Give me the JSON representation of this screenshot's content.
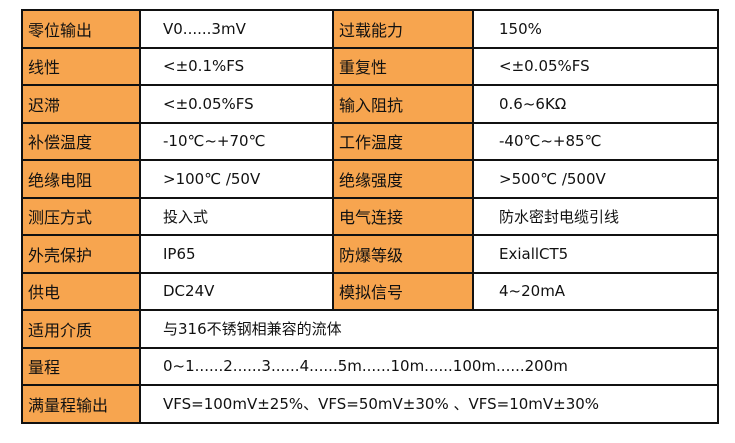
{
  "rows": [
    {
      "label1": "零位输出",
      "value1": "V0......3mV",
      "label2": "过载能力",
      "value2": "150%"
    },
    {
      "label1": "线性",
      "value1": "<±0.1%FS",
      "label2": "重复性",
      "value2": "<±0.05%FS"
    },
    {
      "label1": "迟滞",
      "value1": "<±0.05%FS",
      "label2": "输入阻抗",
      "value2": "0.6~6KΩ"
    },
    {
      "label1": "补偿温度",
      "value1": "-10℃~+70℃",
      "label2": "工作温度",
      "value2": "-40℃~+85℃"
    },
    {
      "label1": "绝缘电阻",
      "value1": ">100℃ /50V",
      "label2": "绝缘强度",
      "value2": ">500℃ /500V"
    },
    {
      "label1": "测压方式",
      "value1": "投入式",
      "label2": "电气连接",
      "value2": "防水密封电缆引线"
    },
    {
      "label1": "外壳保护",
      "value1": "IP65",
      "label2": "防爆等级",
      "value2": "ExiallCT5"
    },
    {
      "label1": "供电",
      "value1": "DC24V",
      "label2": "模拟信号",
      "value2": "4~20mA"
    }
  ],
  "wide_rows": [
    {
      "label": "适用介质",
      "value": "与316不锈钢相兼容的流体"
    },
    {
      "label": "量程",
      "value": "0~1......2......3......4......5m......10m......100m......200m"
    },
    {
      "label": "满量程输出",
      "value": "VFS=100mV±25%、VFS=50mV±30% 、VFS=10mV±30%"
    }
  ],
  "colors": {
    "label_bg": "#f7a54f",
    "value_bg": "#ffffff",
    "border": "#111111"
  }
}
